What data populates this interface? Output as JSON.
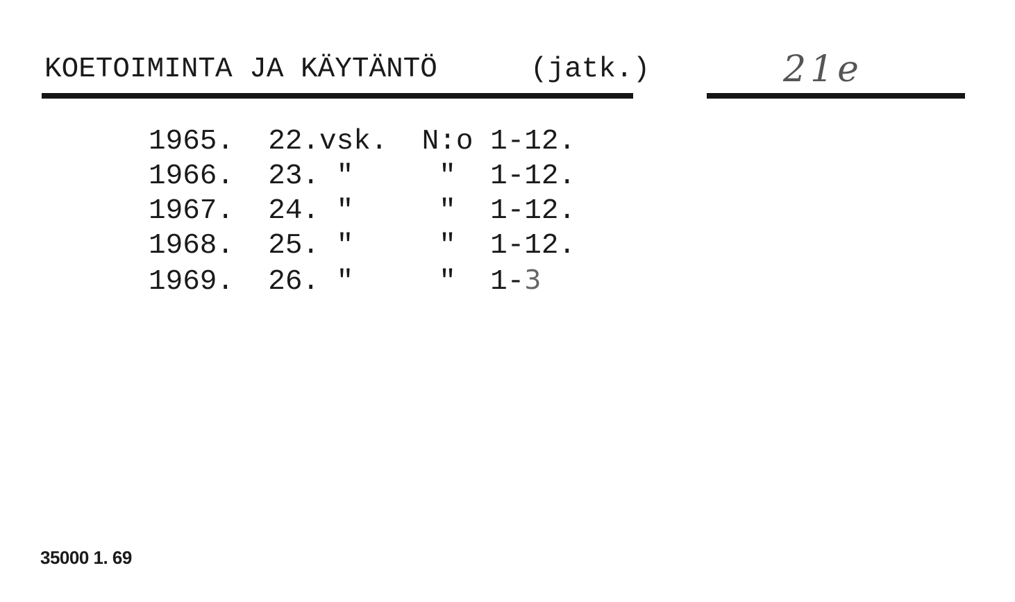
{
  "header": {
    "title": "KOETOIMINTA JA KÄYTÄNTÖ",
    "continuation": "(jatk.)",
    "call_number": "21e"
  },
  "holdings": [
    {
      "text": "1965.  22.vsk.  N:o 1-12.",
      "handwritten": ""
    },
    {
      "text": "1966.  23. \"     \"  1-12.",
      "handwritten": ""
    },
    {
      "text": "1967.  24. \"     \"  1-12.",
      "handwritten": ""
    },
    {
      "text": "1968.  25. \"     \"  1-12.",
      "handwritten": ""
    },
    {
      "text": "1969.  26. \"     \"  1-",
      "handwritten": "3"
    }
  ],
  "footer": {
    "print_code": "35000 1. 69"
  }
}
